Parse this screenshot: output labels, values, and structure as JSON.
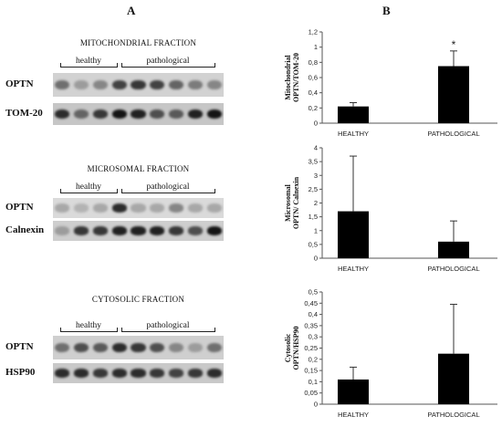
{
  "panel_labels": {
    "a": "A",
    "b": "B"
  },
  "blots": [
    {
      "title": "MITOCHONDRIAL FRACTION",
      "groups": {
        "healthy": "healthy",
        "pathological": "pathological"
      },
      "rows": [
        {
          "label": "OPTN",
          "bg": "#d2d2d2",
          "intensity": [
            0.55,
            0.35,
            0.45,
            0.75,
            0.8,
            0.75,
            0.6,
            0.5,
            0.45
          ]
        },
        {
          "label": "TOM-20",
          "bg": "#c6c6c6",
          "intensity": [
            0.85,
            0.6,
            0.8,
            0.95,
            0.9,
            0.7,
            0.65,
            0.9,
            0.95
          ]
        }
      ]
    },
    {
      "title": "MICROSOMAL FRACTION",
      "groups": {
        "healthy": "healthy",
        "pathological": "pathological"
      },
      "rows": [
        {
          "label": "OPTN",
          "bg": "#dadada",
          "intensity": [
            0.3,
            0.25,
            0.3,
            0.85,
            0.3,
            0.3,
            0.45,
            0.3,
            0.3
          ]
        },
        {
          "label": "Calnexin",
          "bg": "#cecece",
          "intensity": [
            0.35,
            0.8,
            0.8,
            0.9,
            0.9,
            0.9,
            0.8,
            0.7,
            0.95
          ]
        }
      ]
    },
    {
      "title": "CYTOSOLIC FRACTION",
      "groups": {
        "healthy": "healthy",
        "pathological": "pathological"
      },
      "rows": [
        {
          "label": "OPTN",
          "bg": "#cfcfcf",
          "intensity": [
            0.55,
            0.7,
            0.65,
            0.85,
            0.8,
            0.7,
            0.45,
            0.35,
            0.55
          ]
        },
        {
          "label": "HSP90",
          "bg": "#c9c9c9",
          "intensity": [
            0.85,
            0.85,
            0.8,
            0.85,
            0.85,
            0.8,
            0.75,
            0.8,
            0.85
          ]
        }
      ]
    }
  ],
  "chart_data": [
    {
      "type": "bar",
      "categories": [
        "HEALTHY",
        "PATHOLOGICAL"
      ],
      "values": [
        0.22,
        0.75
      ],
      "errors": [
        0.05,
        0.2
      ],
      "ylabel": "Mitochondrial OPTN/TOM-20",
      "ylim": [
        0,
        1.2
      ],
      "ticks": [
        "0",
        "0,2",
        "0,4",
        "0,6",
        "0,8",
        "1",
        "1,2"
      ],
      "annotation": "*",
      "bar_color": "#000000"
    },
    {
      "type": "bar",
      "categories": [
        "HEALTHY",
        "PATHOLOGICAL"
      ],
      "values": [
        1.7,
        0.6
      ],
      "errors": [
        2.0,
        0.75
      ],
      "ylabel": "Microsomal OPTN/ Calnexin",
      "ylim": [
        0,
        4
      ],
      "ticks": [
        "0",
        "0,5",
        "1",
        "1,5",
        "2",
        "2,5",
        "3",
        "3,5",
        "4"
      ],
      "annotation": "",
      "bar_color": "#000000"
    },
    {
      "type": "bar",
      "categories": [
        "HEALTHY",
        "PATHOLOGICAL"
      ],
      "values": [
        0.11,
        0.225
      ],
      "errors": [
        0.055,
        0.22
      ],
      "ylabel": "Cytosolic OPTN/HSP90",
      "ylim": [
        0,
        0.5
      ],
      "ticks": [
        "0",
        "0,05",
        "0,1",
        "0,15",
        "0,2",
        "0,25",
        "0,3",
        "0,35",
        "0,4",
        "0,45",
        "0,5"
      ],
      "annotation": "",
      "bar_color": "#000000"
    }
  ]
}
